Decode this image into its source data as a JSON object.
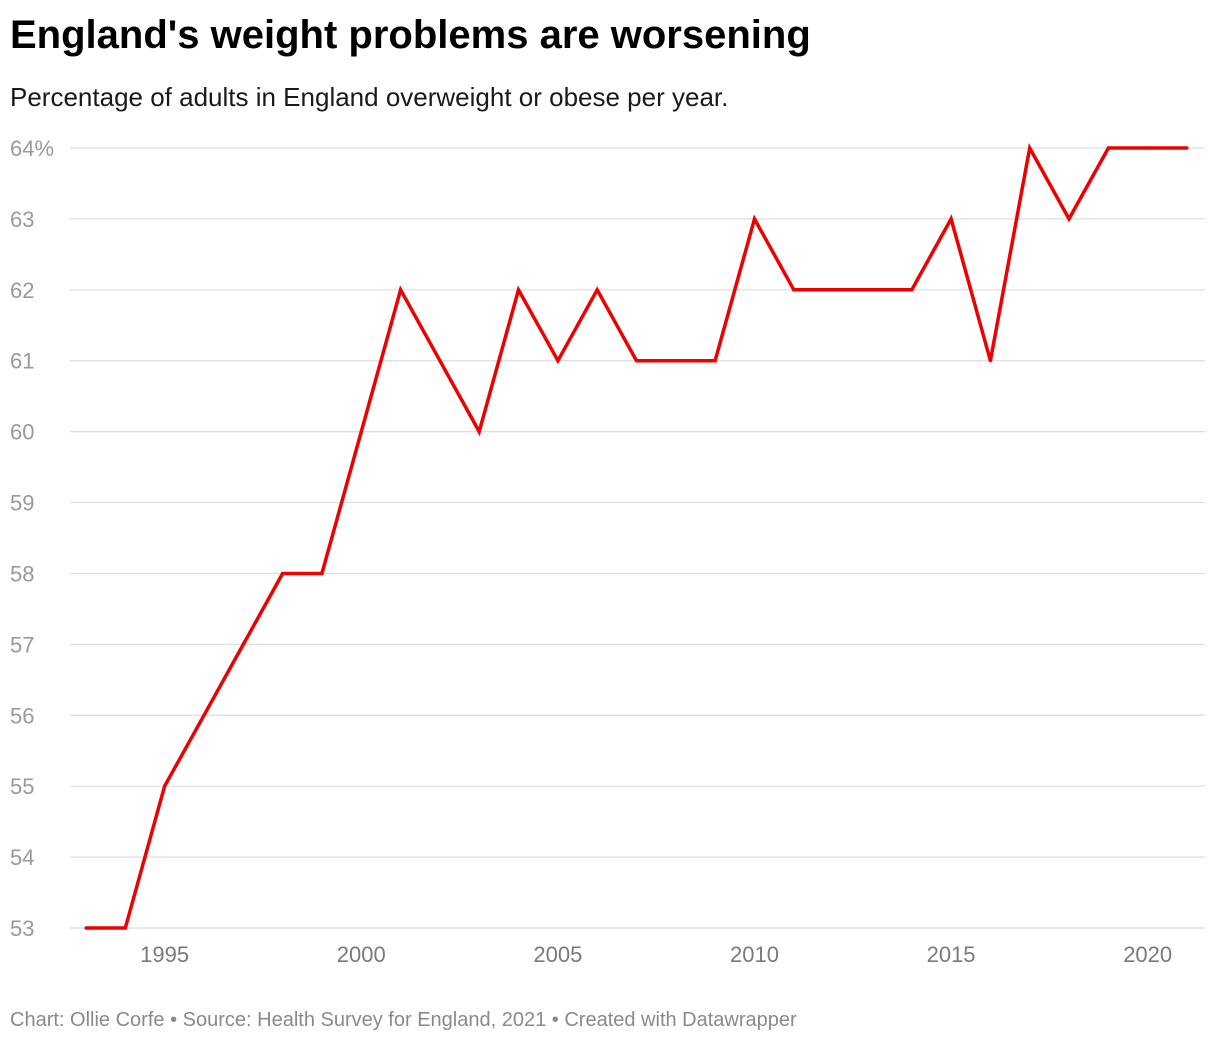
{
  "title": "England's weight problems are worsening",
  "subtitle": "Percentage of adults in England overweight or obese per year.",
  "footer": {
    "chart_credit": "Chart: Ollie Corfe",
    "source": "Source: Health Survey for England, 2021",
    "tool": "Created with Datawrapper",
    "separator": "•"
  },
  "colors": {
    "line": "#ee0000",
    "grid": "#dddddd",
    "tick_text": "#9a9a9a"
  },
  "chart_data": {
    "type": "line",
    "title": "England's weight problems are worsening",
    "subtitle": "Percentage of adults in England overweight or obese per year.",
    "xlabel": "",
    "ylabel": "",
    "x": [
      1993,
      1994,
      1995,
      1996,
      1997,
      1998,
      1999,
      2000,
      2001,
      2002,
      2003,
      2004,
      2005,
      2006,
      2007,
      2008,
      2009,
      2010,
      2011,
      2012,
      2013,
      2014,
      2015,
      2016,
      2017,
      2018,
      2019,
      2020,
      2021
    ],
    "series": [
      {
        "name": "",
        "values": [
          53,
          53,
          55,
          56,
          57,
          58,
          58,
          60,
          62,
          61,
          60,
          62,
          61,
          62,
          61,
          61,
          61,
          63,
          62,
          62,
          62,
          62,
          63,
          61,
          64,
          63,
          64,
          64,
          64
        ]
      }
    ],
    "xlim": [
      1993,
      2021
    ],
    "ylim": [
      53,
      64
    ],
    "y_ticks": [
      53,
      54,
      55,
      56,
      57,
      58,
      59,
      60,
      61,
      62,
      63,
      64
    ],
    "y_tick_labels": [
      "53",
      "54",
      "55",
      "56",
      "57",
      "58",
      "59",
      "60",
      "61",
      "62",
      "63",
      "64%"
    ],
    "x_ticks": [
      1995,
      2000,
      2005,
      2010,
      2015,
      2020
    ],
    "x_tick_labels": [
      "1995",
      "2000",
      "2005",
      "2010",
      "2015",
      "2020"
    ],
    "grid": true,
    "legend": "none"
  }
}
